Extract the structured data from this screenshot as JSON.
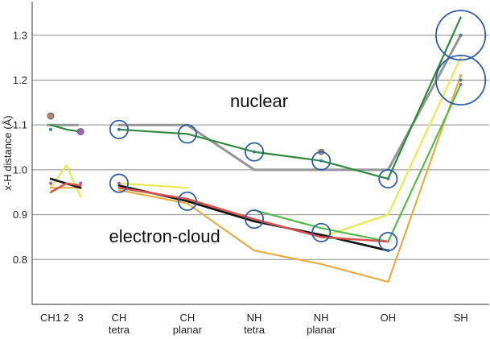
{
  "chart_data": {
    "type": "line",
    "title": "",
    "xlabel": "",
    "ylabel": "x-H distance (Å)",
    "ylim": [
      0.7,
      1.375
    ],
    "yticks": [
      0.8,
      0.9,
      1.0,
      1.1,
      1.2,
      1.3
    ],
    "grid": "horizontal",
    "legend": "none",
    "categories": [
      {
        "key": "CH1",
        "label": [
          "CH1"
        ],
        "x": 0
      },
      {
        "key": "CH2",
        "label": [
          "2"
        ],
        "x": 0.55
      },
      {
        "key": "CH3",
        "label": [
          "3"
        ],
        "x": 1.05
      },
      {
        "key": "CHtetra",
        "label": [
          "CH",
          "tetra"
        ],
        "x": 2.4
      },
      {
        "key": "CHplanar",
        "label": [
          "CH",
          "planar"
        ],
        "x": 4.8
      },
      {
        "key": "NHtetra",
        "label": [
          "NH",
          "tetra"
        ],
        "x": 7.15
      },
      {
        "key": "NHplanar",
        "label": [
          "NH",
          "planar"
        ],
        "x": 9.5
      },
      {
        "key": "OH",
        "label": [
          "OH"
        ],
        "x": 11.85
      },
      {
        "key": "SH",
        "label": [
          "SH"
        ],
        "x": 14.4
      }
    ],
    "xlim": [
      -0.65,
      15.4
    ],
    "annotations": [
      {
        "text": "nuclear",
        "x": 6.3,
        "y": 1.14
      },
      {
        "text": "electron-cloud",
        "x": 2.05,
        "y": 0.838
      }
    ],
    "series": [
      {
        "color": "#959595",
        "width": 3,
        "segments": [
          [
            [
              -0.1,
              1.1
            ],
            [
              0.95,
              1.1
            ]
          ],
          [
            [
              2.4,
              1.1
            ],
            [
              4.8,
              1.1
            ],
            [
              7.15,
              1.0
            ],
            [
              9.5,
              1.0
            ],
            [
              11.85,
              1.0
            ],
            [
              14.4,
              1.3
            ]
          ]
        ]
      },
      {
        "color": "#2f8a3b",
        "width": 2.2,
        "segments": [
          [
            [
              0.0,
              1.1
            ],
            [
              0.55,
              1.09
            ],
            [
              1.05,
              1.085
            ]
          ],
          [
            [
              2.4,
              1.09
            ],
            [
              4.8,
              1.08
            ],
            [
              7.15,
              1.04
            ],
            [
              9.5,
              1.02
            ],
            [
              11.85,
              0.98
            ],
            [
              14.4,
              1.34
            ]
          ]
        ]
      },
      {
        "color": "#e9e84f",
        "width": 2.2,
        "segments": [
          [
            [
              0.0,
              0.96
            ],
            [
              0.55,
              1.01
            ],
            [
              1.05,
              0.94
            ]
          ],
          [
            [
              2.4,
              0.97
            ],
            [
              4.8,
              0.96
            ]
          ],
          [
            [
              7.15,
              0.89
            ],
            [
              9.5,
              0.85
            ],
            [
              11.85,
              0.9
            ],
            [
              14.4,
              1.25
            ]
          ]
        ]
      },
      {
        "color": "#e8ad44",
        "width": 2.2,
        "segments": [
          [
            [
              0.0,
              0.96
            ],
            [
              1.05,
              0.96
            ]
          ],
          [
            [
              2.4,
              0.955
            ],
            [
              4.8,
              0.925
            ],
            [
              7.15,
              0.82
            ],
            [
              9.5,
              0.79
            ],
            [
              11.85,
              0.75
            ],
            [
              14.4,
              1.21
            ]
          ]
        ]
      },
      {
        "color": "#56b94d",
        "width": 2.2,
        "segments": [
          [
            [
              7.15,
              0.91
            ],
            [
              9.5,
              0.87
            ],
            [
              11.85,
              0.84
            ],
            [
              14.4,
              1.19
            ]
          ]
        ]
      },
      {
        "color": "#111111",
        "width": 2.6,
        "segments": [
          [
            [
              0.0,
              0.98
            ],
            [
              1.05,
              0.96
            ]
          ],
          [
            [
              2.4,
              0.965
            ],
            [
              4.8,
              0.93
            ],
            [
              7.15,
              0.885
            ],
            [
              9.5,
              0.855
            ],
            [
              11.85,
              0.82
            ]
          ]
        ]
      },
      {
        "color": "#d9534f",
        "width": 2.6,
        "segments": [
          [
            [
              0.0,
              0.95
            ],
            [
              0.55,
              0.97
            ],
            [
              1.05,
              0.965
            ]
          ],
          [
            [
              2.4,
              0.96
            ],
            [
              4.8,
              0.935
            ],
            [
              7.15,
              0.89
            ],
            [
              9.5,
              0.85
            ],
            [
              11.85,
              0.84
            ]
          ]
        ]
      }
    ],
    "points": [
      {
        "x": 0.0,
        "y": 1.12,
        "color": "#b08a6a",
        "r": 4
      },
      {
        "x": 1.05,
        "y": 1.085,
        "color": "#a35fc2",
        "r": 4
      },
      {
        "x": 9.5,
        "y": 1.04,
        "color": "#b08a6a",
        "r": 3.5
      },
      {
        "x": 0.0,
        "y": 1.09,
        "color": "#3a7ab5",
        "r": 2
      },
      {
        "x": 0.0,
        "y": 0.97,
        "color": "#8a6ab5",
        "r": 2
      },
      {
        "x": 1.05,
        "y": 0.97,
        "color": "#a35fc2",
        "r": 2
      },
      {
        "x": 2.4,
        "y": 1.09,
        "color": "#3a7ab5",
        "r": 2
      },
      {
        "x": 2.4,
        "y": 0.97,
        "color": "#8a6ab5",
        "r": 2
      },
      {
        "x": 7.15,
        "y": 1.04,
        "color": "#3a7ab5",
        "r": 2
      },
      {
        "x": 9.5,
        "y": 1.02,
        "color": "#3a7ab5",
        "r": 2
      },
      {
        "x": 11.85,
        "y": 0.98,
        "color": "#3a7ab5",
        "r": 2
      },
      {
        "x": 11.85,
        "y": 0.82,
        "color": "#3a7ab5",
        "r": 2
      },
      {
        "x": 14.4,
        "y": 1.3,
        "color": "#3a7ab5",
        "r": 2
      },
      {
        "x": 14.4,
        "y": 1.2,
        "color": "#3a7ab5",
        "r": 2
      },
      {
        "x": 14.4,
        "y": 1.19,
        "color": "#8a6ab5",
        "r": 2
      },
      {
        "x": 14.4,
        "y": 1.21,
        "color": "#e8ad44",
        "r": 2
      }
    ],
    "circles": [
      {
        "x": 2.4,
        "y": 1.09,
        "r": 0.02
      },
      {
        "x": 2.4,
        "y": 0.97,
        "r": 0.02
      },
      {
        "x": 4.8,
        "y": 1.08,
        "r": 0.02
      },
      {
        "x": 4.8,
        "y": 0.93,
        "r": 0.02
      },
      {
        "x": 7.15,
        "y": 1.04,
        "r": 0.02
      },
      {
        "x": 7.15,
        "y": 0.89,
        "r": 0.02
      },
      {
        "x": 9.5,
        "y": 1.02,
        "r": 0.02
      },
      {
        "x": 9.5,
        "y": 0.86,
        "r": 0.02
      },
      {
        "x": 11.85,
        "y": 0.98,
        "r": 0.02
      },
      {
        "x": 11.85,
        "y": 0.84,
        "r": 0.02
      },
      {
        "x": 14.4,
        "y": 1.3,
        "r": 0.055
      },
      {
        "x": 14.4,
        "y": 1.2,
        "r": 0.055
      }
    ],
    "colors": {
      "grid": "#8c8c8c",
      "axis": "#555555",
      "circle": "#2f5ea8"
    }
  }
}
